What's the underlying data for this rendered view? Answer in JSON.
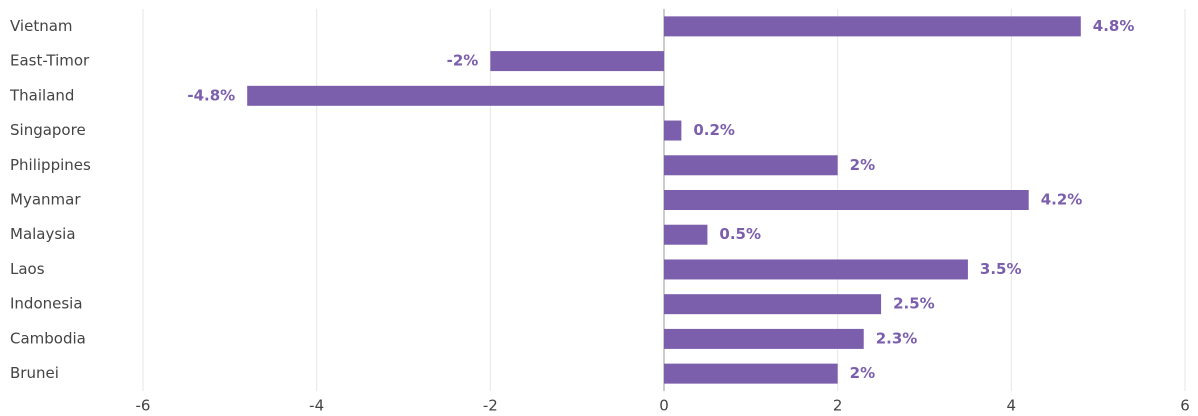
{
  "chart_data": {
    "type": "bar",
    "orientation": "horizontal",
    "categories": [
      "Vietnam",
      "East-Timor",
      "Thailand",
      "Singapore",
      "Philippines",
      "Myanmar",
      "Malaysia",
      "Laos",
      "Indonesia",
      "Cambodia",
      "Brunei"
    ],
    "values": [
      4.8,
      -2,
      -4.8,
      0.2,
      2,
      4.2,
      0.5,
      3.5,
      2.5,
      2.3,
      2
    ],
    "value_labels": [
      "4.8%",
      "-2%",
      "-4.8%",
      "0.2%",
      "2%",
      "4.2%",
      "0.5%",
      "3.5%",
      "2.5%",
      "2.3%",
      "2%"
    ],
    "color": "#7b5fac",
    "xlim": [
      -6,
      6
    ],
    "xticks": [
      -6,
      -4,
      -2,
      0,
      2,
      4,
      6
    ],
    "grid": true
  }
}
